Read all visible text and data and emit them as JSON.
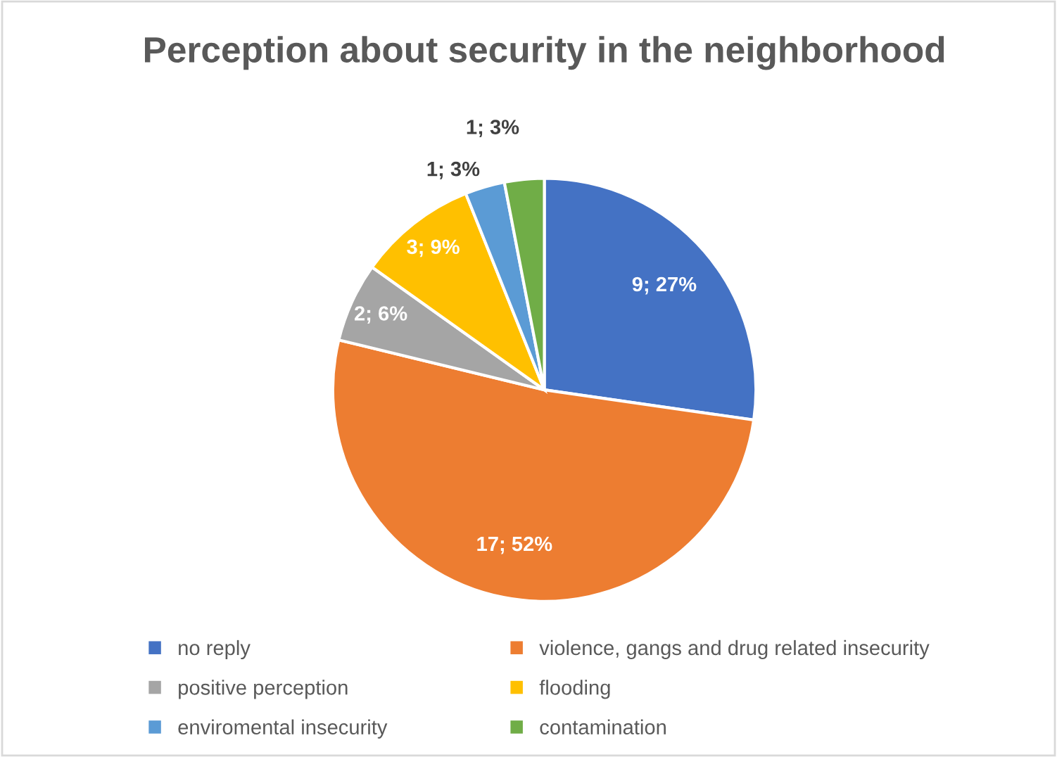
{
  "chart_data": {
    "type": "pie",
    "title": "Perception about security in the neighborhood",
    "categories": [
      "no reply",
      "violence, gangs and drug related insecurity",
      "positive perception",
      "flooding",
      "enviromental insecurity",
      "contamination"
    ],
    "values": [
      9,
      17,
      2,
      3,
      1,
      1
    ],
    "colors": [
      "#4472c4",
      "#ed7d31",
      "#a5a5a5",
      "#ffc000",
      "#5b9bd5",
      "#70ad47"
    ],
    "value_labels": [
      "9; 27%",
      "17; 52%",
      "2; 6%",
      "3; 9%",
      "1; 3%",
      "1; 3%"
    ],
    "legend": "bottom"
  }
}
